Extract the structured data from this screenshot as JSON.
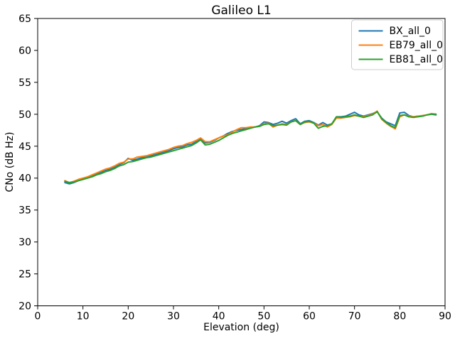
{
  "chart_data": {
    "type": "line",
    "title": "Galileo L1",
    "xlabel": "Elevation (deg)",
    "ylabel": "CNo (dB Hz)",
    "xlim": [
      0,
      90
    ],
    "ylim": [
      20,
      65
    ],
    "xticks": [
      0,
      10,
      20,
      30,
      40,
      50,
      60,
      70,
      80,
      90
    ],
    "yticks": [
      20,
      25,
      30,
      35,
      40,
      45,
      50,
      55,
      60,
      65
    ],
    "grid": false,
    "legend_position": "upper right",
    "colors": {
      "text": "#000000",
      "spine": "#000000",
      "background": "#ffffff",
      "legend_border": "#cccccc"
    },
    "x": [
      6,
      7,
      8,
      9,
      10,
      11,
      12,
      13,
      14,
      15,
      16,
      17,
      18,
      19,
      20,
      21,
      22,
      23,
      24,
      25,
      26,
      27,
      28,
      29,
      30,
      31,
      32,
      33,
      34,
      35,
      36,
      37,
      38,
      39,
      40,
      41,
      42,
      43,
      44,
      45,
      46,
      47,
      48,
      49,
      50,
      51,
      52,
      53,
      54,
      55,
      56,
      57,
      58,
      59,
      60,
      61,
      62,
      63,
      64,
      65,
      66,
      67,
      68,
      69,
      70,
      71,
      72,
      73,
      74,
      75,
      76,
      77,
      78,
      79,
      80,
      81,
      82,
      83,
      84,
      85,
      86,
      87,
      88
    ],
    "series": [
      {
        "name": "BX_all_0",
        "color": "#1f77b4",
        "values": [
          39.3,
          39.1,
          39.3,
          39.6,
          39.8,
          40.0,
          40.3,
          40.6,
          40.9,
          41.2,
          41.4,
          41.7,
          42.1,
          42.4,
          43.1,
          42.8,
          43.0,
          43.2,
          43.3,
          43.5,
          43.7,
          43.9,
          44.1,
          44.3,
          44.6,
          44.8,
          44.9,
          45.2,
          45.3,
          45.7,
          46.1,
          45.5,
          45.6,
          45.9,
          46.3,
          46.6,
          47.0,
          47.3,
          47.5,
          47.6,
          47.8,
          47.9,
          48.0,
          48.2,
          48.8,
          48.7,
          48.4,
          48.6,
          48.9,
          48.6,
          49.0,
          49.3,
          48.5,
          48.9,
          49.0,
          48.7,
          48.3,
          48.7,
          48.3,
          48.5,
          49.6,
          49.6,
          49.7,
          50.0,
          50.3,
          49.9,
          49.7,
          49.9,
          50.1,
          50.4,
          49.4,
          48.8,
          48.5,
          48.2,
          50.2,
          50.3,
          49.8,
          49.6,
          49.7,
          49.7,
          49.9,
          50.0,
          49.9
        ]
      },
      {
        "name": "EB79_all_0",
        "color": "#ff7f0e",
        "values": [
          39.6,
          39.3,
          39.5,
          39.8,
          40.0,
          40.2,
          40.5,
          40.8,
          41.1,
          41.4,
          41.6,
          41.9,
          42.3,
          42.5,
          43.0,
          43.0,
          43.3,
          43.4,
          43.5,
          43.7,
          43.9,
          44.1,
          44.3,
          44.5,
          44.8,
          45.0,
          45.1,
          45.4,
          45.6,
          45.9,
          46.3,
          45.7,
          45.7,
          46.0,
          46.3,
          46.6,
          46.8,
          47.2,
          47.6,
          47.9,
          47.9,
          48.0,
          48.0,
          48.1,
          48.5,
          48.6,
          48.0,
          48.3,
          48.5,
          48.4,
          48.8,
          49.0,
          48.4,
          48.7,
          48.8,
          48.6,
          48.2,
          48.4,
          48.0,
          48.4,
          49.4,
          49.4,
          49.5,
          49.6,
          49.8,
          49.7,
          49.6,
          49.8,
          50.0,
          50.5,
          49.2,
          48.6,
          48.1,
          47.7,
          49.6,
          49.9,
          49.7,
          49.6,
          49.7,
          49.8,
          49.9,
          50.1,
          50.0
        ]
      },
      {
        "name": "EB81_all_0",
        "color": "#2ca02c",
        "values": [
          39.5,
          39.3,
          39.4,
          39.6,
          39.8,
          40.0,
          40.2,
          40.5,
          40.7,
          41.0,
          41.2,
          41.5,
          41.9,
          42.1,
          42.5,
          42.6,
          42.8,
          43.0,
          43.2,
          43.3,
          43.5,
          43.7,
          43.9,
          44.1,
          44.3,
          44.5,
          44.7,
          44.9,
          45.1,
          45.5,
          46.0,
          45.2,
          45.3,
          45.6,
          45.9,
          46.3,
          46.7,
          47.0,
          47.2,
          47.4,
          47.6,
          47.8,
          48.0,
          48.1,
          48.4,
          48.5,
          48.2,
          48.3,
          48.4,
          48.3,
          48.8,
          49.0,
          48.4,
          48.8,
          48.9,
          48.6,
          47.8,
          48.1,
          48.2,
          48.5,
          49.6,
          49.5,
          49.6,
          49.7,
          49.9,
          49.7,
          49.5,
          49.7,
          49.9,
          50.4,
          49.3,
          48.7,
          48.2,
          47.9,
          49.8,
          49.9,
          49.6,
          49.5,
          49.6,
          49.7,
          49.9,
          50.0,
          50.0
        ]
      }
    ]
  }
}
